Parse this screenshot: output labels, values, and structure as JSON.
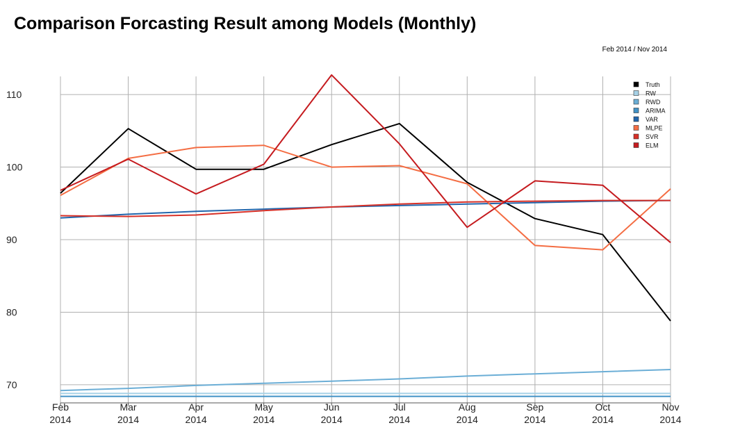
{
  "header": {
    "title": "Comparison Forcasting Result among Models (Monthly)",
    "range_label": "Feb 2014 / Nov 2014"
  },
  "chart_data": {
    "type": "line",
    "title": "Comparison Forcasting Result among Models (Monthly)",
    "xlabel": "",
    "ylabel": "",
    "ylim": [
      67.5,
      112.5
    ],
    "yticks": [
      70,
      80,
      90,
      100,
      110
    ],
    "grid": true,
    "legend_position": "top-right",
    "categories": [
      [
        "Feb",
        "2014"
      ],
      [
        "Mar",
        "2014"
      ],
      [
        "Apr",
        "2014"
      ],
      [
        "May",
        "2014"
      ],
      [
        "Jun",
        "2014"
      ],
      [
        "Jul",
        "2014"
      ],
      [
        "Aug",
        "2014"
      ],
      [
        "Sep",
        "2014"
      ],
      [
        "Oct",
        "2014"
      ],
      [
        "Nov",
        "2014"
      ]
    ],
    "series": [
      {
        "name": "Truth",
        "color": "#000000",
        "values": [
          96.4,
          105.3,
          99.7,
          99.7,
          103.1,
          106.0,
          97.9,
          92.9,
          90.7,
          78.8
        ]
      },
      {
        "name": "RW",
        "color": "#a6d1e6",
        "values": [
          68.8,
          68.8,
          68.8,
          68.8,
          68.8,
          68.8,
          68.8,
          68.8,
          68.8,
          68.8
        ]
      },
      {
        "name": "RWD",
        "color": "#6baed6",
        "values": [
          69.2,
          69.5,
          69.9,
          70.2,
          70.5,
          70.8,
          71.2,
          71.5,
          71.8,
          72.1
        ]
      },
      {
        "name": "ARIMA",
        "color": "#4292c6",
        "values": [
          68.4,
          68.4,
          68.4,
          68.4,
          68.4,
          68.4,
          68.4,
          68.4,
          68.4,
          68.4
        ]
      },
      {
        "name": "VAR",
        "color": "#2166ac",
        "values": [
          93.0,
          93.5,
          93.9,
          94.2,
          94.5,
          94.7,
          94.9,
          95.1,
          95.3,
          95.4
        ]
      },
      {
        "name": "MLPE",
        "color": "#f46d43",
        "values": [
          96.1,
          101.2,
          102.7,
          103.0,
          100.0,
          100.2,
          97.7,
          89.2,
          88.6,
          97.0
        ]
      },
      {
        "name": "SVR",
        "color": "#d73027",
        "values": [
          93.3,
          93.2,
          93.4,
          94.0,
          94.5,
          94.9,
          95.2,
          95.3,
          95.4,
          95.4
        ]
      },
      {
        "name": "ELM",
        "color": "#c51b1f",
        "values": [
          96.8,
          101.1,
          96.3,
          100.4,
          112.7,
          103.2,
          91.7,
          98.1,
          97.5,
          89.6
        ]
      }
    ]
  }
}
